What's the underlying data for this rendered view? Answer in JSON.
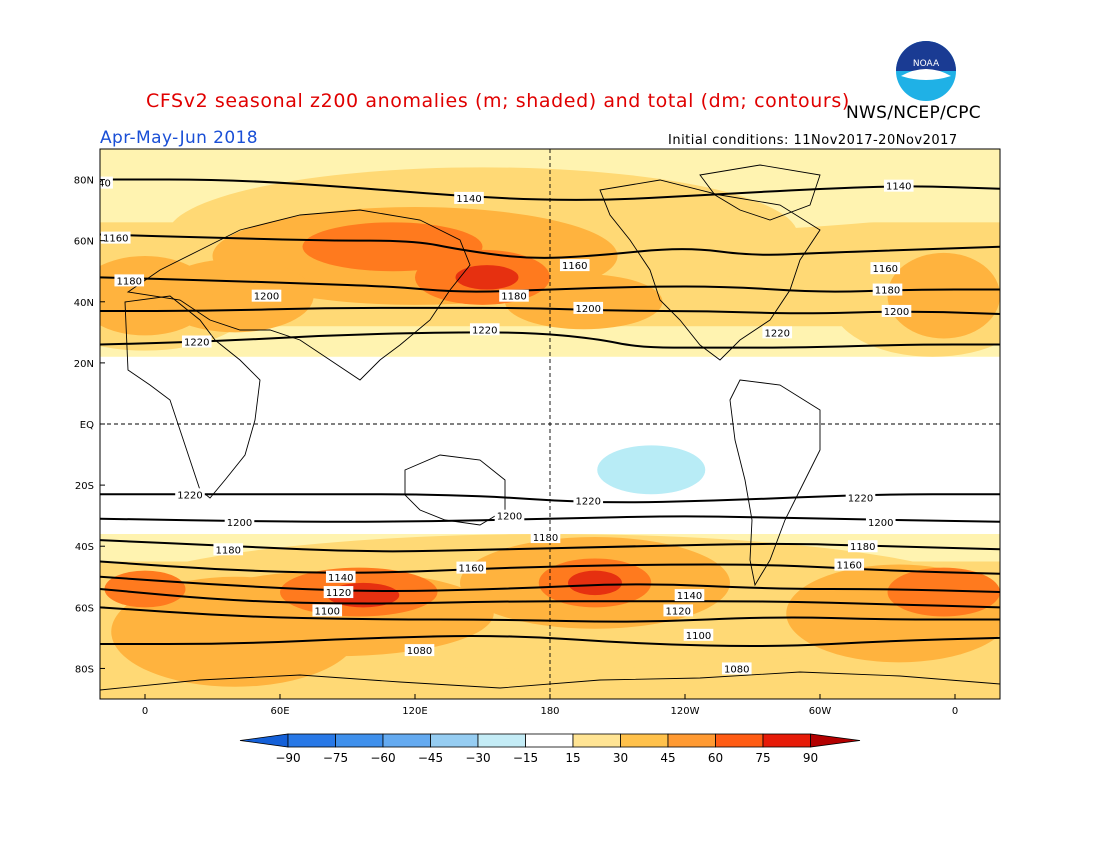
{
  "header": {
    "title": "CFSv2 seasonal z200 anomalies (m; shaded) and total (dm; contours)",
    "organization": "NWS/NCEP/CPC",
    "season": "Apr-May-Jun 2018",
    "initial_conditions": "Initial conditions: 11Nov2017-20Nov2017",
    "logo_text": "NOAA"
  },
  "map": {
    "lat_labels": [
      "80N",
      "60N",
      "40N",
      "20N",
      "EQ",
      "20S",
      "40S",
      "60S",
      "80S"
    ],
    "lat_values": [
      80,
      60,
      40,
      20,
      0,
      -20,
      -40,
      -60,
      -80
    ],
    "lon_labels": [
      "0",
      "60E",
      "120E",
      "180",
      "120W",
      "60W",
      "0"
    ],
    "lon_values": [
      0,
      60,
      120,
      180,
      240,
      300,
      360
    ],
    "lon_range": [
      -20,
      380
    ],
    "lat_range": [
      -90,
      90
    ],
    "reference_lines": [
      "equator",
      "dateline"
    ],
    "contours": [
      {
        "value": 1140,
        "label": "1140",
        "points": [
          [
            -20,
            80
          ],
          [
            40,
            80
          ],
          [
            100,
            77
          ],
          [
            150,
            74
          ],
          [
            200,
            73
          ],
          [
            250,
            75
          ],
          [
            300,
            77
          ],
          [
            340,
            78
          ],
          [
            380,
            77
          ]
        ]
      },
      {
        "value": 1160,
        "label": "1160",
        "points": [
          [
            -20,
            62
          ],
          [
            30,
            61
          ],
          [
            80,
            60
          ],
          [
            120,
            60
          ],
          [
            140,
            57
          ],
          [
            170,
            54
          ],
          [
            200,
            55
          ],
          [
            240,
            58
          ],
          [
            270,
            55
          ],
          [
            300,
            56
          ],
          [
            340,
            57
          ],
          [
            380,
            58
          ]
        ]
      },
      {
        "value": 1180,
        "label": "1180",
        "points": [
          [
            -20,
            48
          ],
          [
            30,
            47
          ],
          [
            70,
            46
          ],
          [
            110,
            45
          ],
          [
            140,
            43
          ],
          [
            180,
            44
          ],
          [
            220,
            45
          ],
          [
            260,
            45
          ],
          [
            300,
            43
          ],
          [
            340,
            44
          ],
          [
            380,
            44
          ]
        ]
      },
      {
        "value": 1200,
        "label": "1200",
        "points": [
          [
            -20,
            37
          ],
          [
            30,
            37
          ],
          [
            80,
            38
          ],
          [
            130,
            38
          ],
          [
            170,
            38
          ],
          [
            210,
            37
          ],
          [
            250,
            37
          ],
          [
            290,
            36
          ],
          [
            340,
            37
          ],
          [
            380,
            36
          ]
        ]
      },
      {
        "value": 1220,
        "label": "1220",
        "points": [
          [
            -20,
            26
          ],
          [
            30,
            27
          ],
          [
            80,
            29
          ],
          [
            130,
            30
          ],
          [
            170,
            30
          ],
          [
            200,
            28
          ],
          [
            220,
            25
          ],
          [
            250,
            25
          ],
          [
            290,
            25
          ],
          [
            340,
            26
          ],
          [
            380,
            26
          ]
        ]
      },
      {
        "value": 1220,
        "label": "1220",
        "points": [
          [
            -20,
            -23
          ],
          [
            60,
            -23
          ],
          [
            140,
            -23
          ],
          [
            200,
            -26
          ],
          [
            260,
            -25
          ],
          [
            320,
            -23
          ],
          [
            380,
            -23
          ]
        ]
      },
      {
        "value": 1200,
        "label": "1200",
        "points": [
          [
            -20,
            -31
          ],
          [
            60,
            -32
          ],
          [
            120,
            -32
          ],
          [
            180,
            -31
          ],
          [
            240,
            -30
          ],
          [
            300,
            -31
          ],
          [
            380,
            -32
          ]
        ]
      },
      {
        "value": 1180,
        "label": "1180",
        "points": [
          [
            -20,
            -38
          ],
          [
            40,
            -40
          ],
          [
            100,
            -42
          ],
          [
            160,
            -41
          ],
          [
            220,
            -40
          ],
          [
            280,
            -39
          ],
          [
            330,
            -40
          ],
          [
            380,
            -41
          ]
        ]
      },
      {
        "value": 1160,
        "label": "1160",
        "points": [
          [
            -20,
            -45
          ],
          [
            40,
            -48
          ],
          [
            100,
            -49
          ],
          [
            160,
            -47
          ],
          [
            220,
            -46
          ],
          [
            280,
            -46
          ],
          [
            330,
            -48
          ],
          [
            380,
            -49
          ]
        ]
      },
      {
        "value": 1140,
        "label": "1140",
        "points": [
          [
            -20,
            -50
          ],
          [
            40,
            -53
          ],
          [
            100,
            -55
          ],
          [
            160,
            -54
          ],
          [
            220,
            -52
          ],
          [
            280,
            -54
          ],
          [
            330,
            -54
          ],
          [
            380,
            -55
          ]
        ]
      },
      {
        "value": 1120,
        "label": "1120",
        "points": [
          [
            -20,
            -54
          ],
          [
            40,
            -58
          ],
          [
            100,
            -59
          ],
          [
            160,
            -58
          ],
          [
            220,
            -58
          ],
          [
            280,
            -58
          ],
          [
            330,
            -59
          ],
          [
            380,
            -60
          ]
        ]
      },
      {
        "value": 1100,
        "label": "1100",
        "points": [
          [
            -20,
            -60
          ],
          [
            40,
            -63
          ],
          [
            100,
            -64
          ],
          [
            160,
            -64
          ],
          [
            220,
            -65
          ],
          [
            280,
            -63
          ],
          [
            330,
            -64
          ],
          [
            380,
            -64
          ]
        ]
      },
      {
        "value": 1080,
        "label": "1080",
        "points": [
          [
            -20,
            -72
          ],
          [
            40,
            -72
          ],
          [
            100,
            -70
          ],
          [
            160,
            -69
          ],
          [
            220,
            -72
          ],
          [
            280,
            -73
          ],
          [
            330,
            -71
          ],
          [
            380,
            -70
          ]
        ]
      }
    ],
    "contour_labels": [
      {
        "text": "40",
        "lon": -18,
        "lat": 79
      },
      {
        "text": "1140",
        "lon": 144,
        "lat": 74
      },
      {
        "text": "1140",
        "lon": 335,
        "lat": 78
      },
      {
        "text": "1160",
        "lon": -13,
        "lat": 61
      },
      {
        "text": "1160",
        "lon": 191,
        "lat": 52
      },
      {
        "text": "1160",
        "lon": 329,
        "lat": 51
      },
      {
        "text": "1180",
        "lon": -7,
        "lat": 47
      },
      {
        "text": "1180",
        "lon": 164,
        "lat": 42
      },
      {
        "text": "1180",
        "lon": 330,
        "lat": 44
      },
      {
        "text": "1200",
        "lon": 54,
        "lat": 42
      },
      {
        "text": "1200",
        "lon": 197,
        "lat": 38
      },
      {
        "text": "1200",
        "lon": 334,
        "lat": 37
      },
      {
        "text": "1220",
        "lon": 151,
        "lat": 31
      },
      {
        "text": "1220",
        "lon": 281,
        "lat": 30
      },
      {
        "text": "1220",
        "lon": 23,
        "lat": 27
      },
      {
        "text": "1220",
        "lon": 20,
        "lat": -23
      },
      {
        "text": "1220",
        "lon": 197,
        "lat": -25
      },
      {
        "text": "1220",
        "lon": 318,
        "lat": -24
      },
      {
        "text": "1200",
        "lon": 42,
        "lat": -32
      },
      {
        "text": "1200",
        "lon": 162,
        "lat": -30
      },
      {
        "text": "1200",
        "lon": 327,
        "lat": -32
      },
      {
        "text": "1180",
        "lon": 37,
        "lat": -41
      },
      {
        "text": "1180",
        "lon": 178,
        "lat": -37
      },
      {
        "text": "1180",
        "lon": 319,
        "lat": -40
      },
      {
        "text": "1160",
        "lon": 145,
        "lat": -47
      },
      {
        "text": "1160",
        "lon": 313,
        "lat": -46
      },
      {
        "text": "1140",
        "lon": 87,
        "lat": -50
      },
      {
        "text": "1140",
        "lon": 242,
        "lat": -56
      },
      {
        "text": "1120",
        "lon": 86,
        "lat": -55
      },
      {
        "text": "1120",
        "lon": 237,
        "lat": -61
      },
      {
        "text": "1100",
        "lon": 81,
        "lat": -61
      },
      {
        "text": "1100",
        "lon": 246,
        "lat": -69
      },
      {
        "text": "1080",
        "lon": 122,
        "lat": -74
      },
      {
        "text": "1080",
        "lon": 263,
        "lat": -80
      }
    ],
    "anomaly_regions": [
      {
        "level": 15,
        "lon": 180,
        "lat": 77,
        "rx": 210,
        "ry": 15
      },
      {
        "level": 30,
        "lon": 150,
        "lat": 62,
        "rx": 140,
        "ry": 22
      },
      {
        "level": 30,
        "lon": 0,
        "lat": 42,
        "rx": 50,
        "ry": 18
      },
      {
        "level": 30,
        "lon": 350,
        "lat": 40,
        "rx": 45,
        "ry": 18
      },
      {
        "level": 45,
        "lon": 120,
        "lat": 55,
        "rx": 90,
        "ry": 16
      },
      {
        "level": 45,
        "lon": 40,
        "lat": 42,
        "rx": 35,
        "ry": 12
      },
      {
        "level": 45,
        "lon": 195,
        "lat": 40,
        "rx": 35,
        "ry": 9
      },
      {
        "level": 45,
        "lon": 0,
        "lat": 42,
        "rx": 30,
        "ry": 13
      },
      {
        "level": 45,
        "lon": 355,
        "lat": 42,
        "rx": 25,
        "ry": 14
      },
      {
        "level": 60,
        "lon": 150,
        "lat": 48,
        "rx": 30,
        "ry": 9
      },
      {
        "level": 60,
        "lon": 110,
        "lat": 58,
        "rx": 40,
        "ry": 8
      },
      {
        "level": 75,
        "lon": 152,
        "lat": 48,
        "rx": 14,
        "ry": 4
      },
      {
        "level": 30,
        "lon": 180,
        "lat": -58,
        "rx": 200,
        "ry": 22
      },
      {
        "level": 45,
        "lon": 200,
        "lat": -52,
        "rx": 60,
        "ry": 15
      },
      {
        "level": 45,
        "lon": 85,
        "lat": -62,
        "rx": 70,
        "ry": 14
      },
      {
        "level": 45,
        "lon": 335,
        "lat": -62,
        "rx": 50,
        "ry": 16
      },
      {
        "level": 45,
        "lon": 40,
        "lat": -68,
        "rx": 55,
        "ry": 18
      },
      {
        "level": 60,
        "lon": 95,
        "lat": -55,
        "rx": 35,
        "ry": 8
      },
      {
        "level": 60,
        "lon": 200,
        "lat": -52,
        "rx": 25,
        "ry": 8
      },
      {
        "level": 60,
        "lon": 355,
        "lat": -55,
        "rx": 25,
        "ry": 8
      },
      {
        "level": 60,
        "lon": 0,
        "lat": -54,
        "rx": 18,
        "ry": 6
      },
      {
        "level": 75,
        "lon": 97,
        "lat": -56,
        "rx": 16,
        "ry": 4
      },
      {
        "level": 75,
        "lon": 200,
        "lat": -52,
        "rx": 12,
        "ry": 4
      },
      {
        "level": -15,
        "lon": 225,
        "lat": -15,
        "rx": 24,
        "ry": 8
      }
    ]
  },
  "colorbar": {
    "labels": [
      "-90",
      "-75",
      "-60",
      "-45",
      "-30",
      "-15",
      "15",
      "30",
      "45",
      "60",
      "75",
      "90"
    ],
    "colors": [
      "#1460d8",
      "#2878e6",
      "#3f90ec",
      "#64aaf0",
      "#96cdf2",
      "#c4ecf6",
      "#ffffff",
      "#ffe494",
      "#ffc14b",
      "#ff9a32",
      "#ff5c14",
      "#e61b08",
      "#b30000"
    ],
    "map_fills": {
      "-15": "#b8ecf6",
      "15": "#fff3b0",
      "30": "#ffd975",
      "45": "#ffb33e",
      "60": "#ff7a1e",
      "75": "#e63010"
    }
  }
}
